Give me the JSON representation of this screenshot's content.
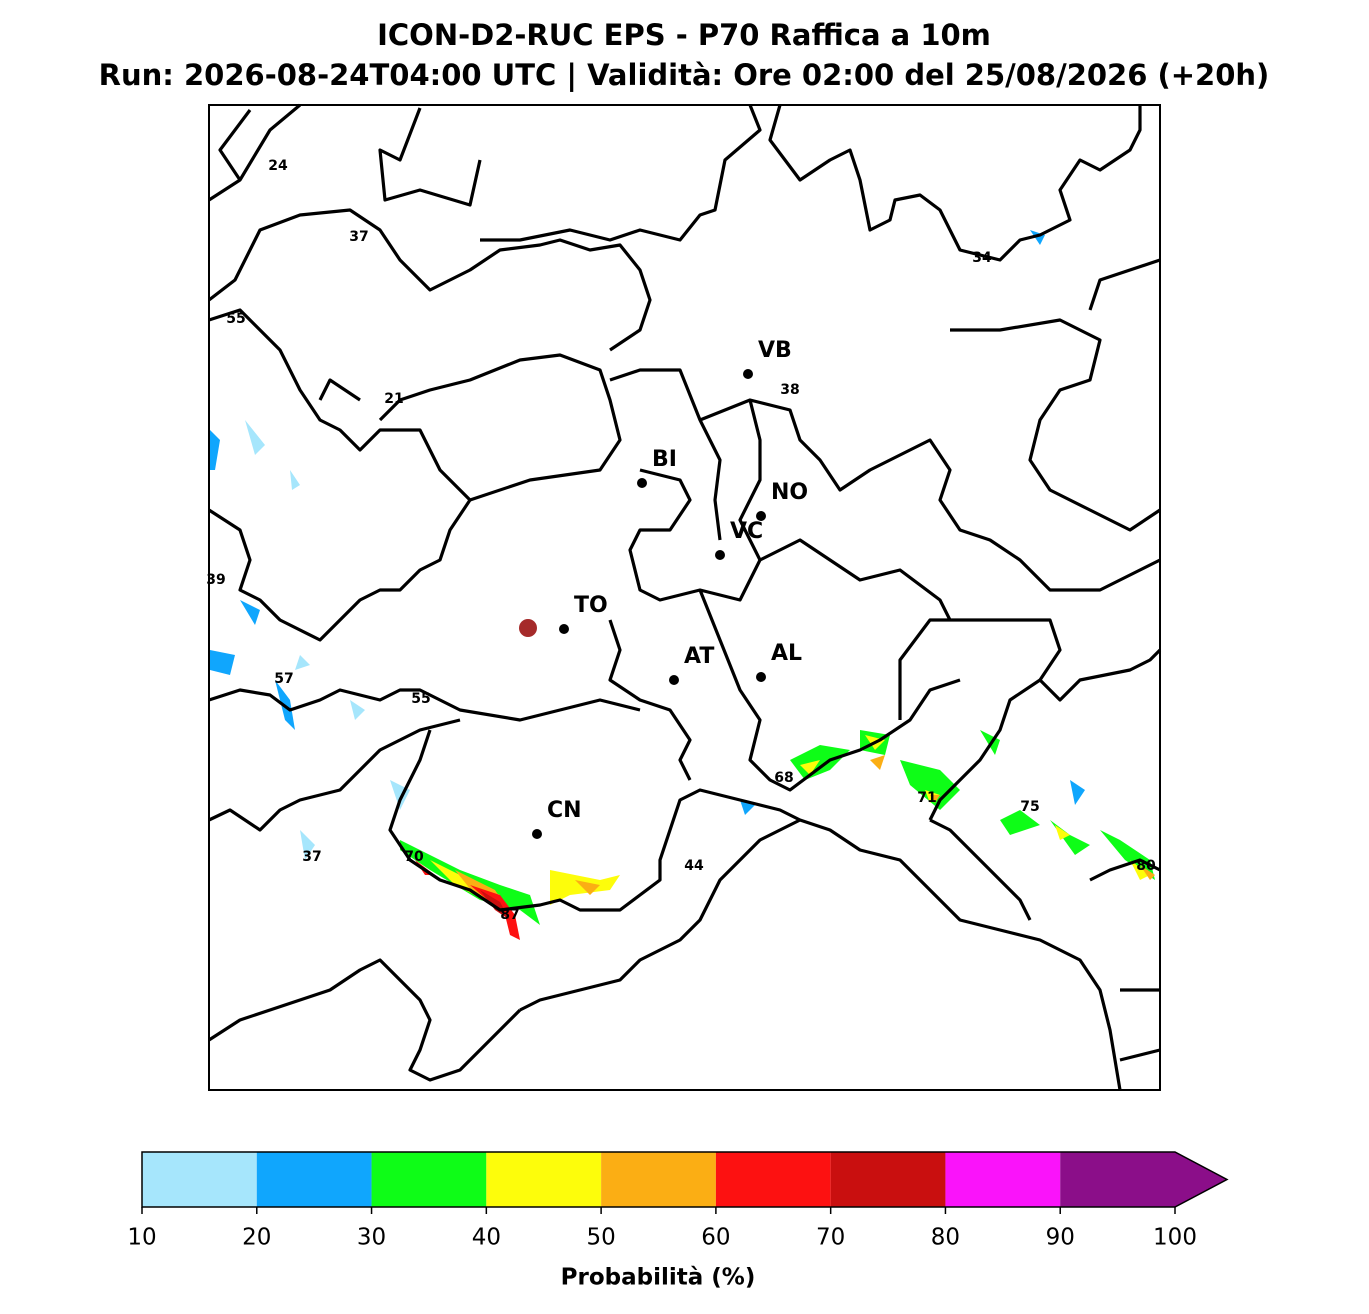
{
  "header": {
    "title": "ICON-D2-RUC EPS - P70 Raffica a 10m",
    "subtitle": "Run: 2026-08-24T04:00 UTC | Validità: Ore 02:00 del 25/08/2026 (+20h)"
  },
  "map": {
    "cities": [
      "VB",
      "BI",
      "NO",
      "VC",
      "TO",
      "AT",
      "AL",
      "CN"
    ],
    "max_labels": [
      24,
      37,
      34,
      55,
      21,
      38,
      39,
      57,
      55,
      68,
      71,
      75,
      80,
      37,
      70,
      87,
      44
    ]
  },
  "colorbar": {
    "label": "Probabilità (%)",
    "ticks": [
      10,
      20,
      30,
      40,
      50,
      60,
      70,
      80,
      90,
      100
    ],
    "colors": [
      "#a6e6fc",
      "#10a6fd",
      "#0efd17",
      "#fdfd0b",
      "#fbae14",
      "#fd1111",
      "#c90f0f",
      "#fa13fa",
      "#8b0e89"
    ],
    "extend": "max"
  }
}
